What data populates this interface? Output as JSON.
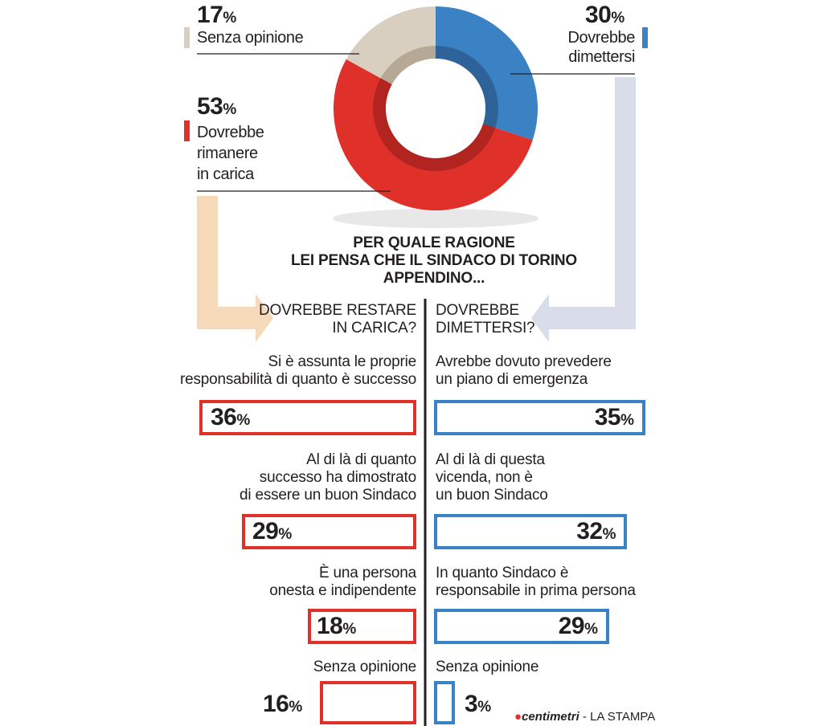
{
  "chart_data": [
    {
      "type": "pie",
      "series": [
        {
          "label": "Senza opinione",
          "value": 17,
          "color": "#d9cfc1"
        },
        {
          "label": "Dovrebbe dimettersi",
          "value": 30,
          "color": "#3b82c4"
        },
        {
          "label": "Dovrebbe rimanere in carica",
          "value": 53,
          "color": "#e0302a"
        }
      ],
      "labels": {
        "senza": {
          "value": "17",
          "unit": "%",
          "text": "Senza opinione"
        },
        "dimettersi": {
          "value": "30",
          "unit": "%",
          "line1": "Dovrebbe",
          "line2": "dimettersi"
        },
        "rimanere": {
          "value": "53",
          "unit": "%",
          "line1": "Dovrebbe",
          "line2": "rimanere",
          "line3": "in carica"
        }
      }
    },
    {
      "type": "bar",
      "question": {
        "line1": "PER QUALE RAGIONE",
        "line2": "LEI PENSA CHE IL SINDACO DI TORINO",
        "line3": "APPENDINO..."
      },
      "left_header": {
        "line1": "DOVREBBE RESTARE",
        "line2": "IN CARICA?"
      },
      "right_header": {
        "line1": "DOVREBBE",
        "line2": "DIMETTERSI?"
      },
      "left": [
        {
          "lines": [
            "Si è assunta le proprie",
            "responsabilità di quanto è successo"
          ],
          "value": 36,
          "label": "36"
        },
        {
          "lines": [
            "Al di là di quanto",
            "successo ha dimostrato",
            "di essere un buon Sindaco"
          ],
          "value": 29,
          "label": "29"
        },
        {
          "lines": [
            "È una persona",
            "onesta e indipendente"
          ],
          "value": 18,
          "label": "18"
        },
        {
          "lines": [
            "Senza opinione"
          ],
          "value": 16,
          "label": "16"
        }
      ],
      "right": [
        {
          "lines": [
            "Avrebbe dovuto prevedere",
            "un piano di emergenza"
          ],
          "value": 35,
          "label": "35"
        },
        {
          "lines": [
            "Al di là di questa",
            "vicenda, non è",
            "un buon Sindaco"
          ],
          "value": 32,
          "label": "32"
        },
        {
          "lines": [
            "In quanto Sindaco è",
            "responsabile in prima persona"
          ],
          "value": 29,
          "label": "29"
        },
        {
          "lines": [
            "Senza opinione"
          ],
          "value": 3,
          "label": "3"
        }
      ],
      "unit": "%"
    }
  ],
  "credit": {
    "brand": "centimetri",
    "sep": " - ",
    "paper": "LA STAMPA"
  },
  "colors": {
    "red": "#e0302a",
    "blue": "#3b82c4",
    "beige": "#d9cfc1",
    "arrow_left": "#f5d9b8",
    "arrow_right": "#d8dde9"
  }
}
